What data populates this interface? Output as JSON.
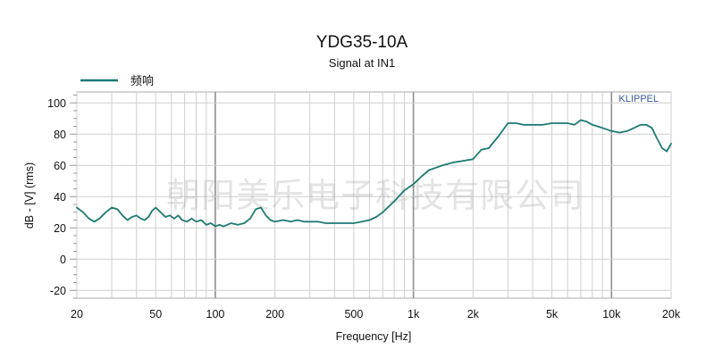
{
  "chart_data": {
    "type": "line",
    "title": "YDG35-10A",
    "subtitle": "Signal at IN1",
    "xlabel": "Frequency [Hz]",
    "ylabel": "dB - [V]  (rms)",
    "xscale": "log",
    "xlim": [
      20,
      20000
    ],
    "ylim": [
      -25,
      107
    ],
    "x_ticks": [
      {
        "value": 20,
        "label": "20"
      },
      {
        "value": 50,
        "label": "50"
      },
      {
        "value": 100,
        "label": "100"
      },
      {
        "value": 200,
        "label": "200"
      },
      {
        "value": 500,
        "label": "500"
      },
      {
        "value": 1000,
        "label": "1k"
      },
      {
        "value": 2000,
        "label": "2k"
      },
      {
        "value": 5000,
        "label": "5k"
      },
      {
        "value": 10000,
        "label": "10k"
      },
      {
        "value": 20000,
        "label": "20k"
      }
    ],
    "y_ticks": [
      -20,
      0,
      20,
      40,
      60,
      80,
      100
    ],
    "grid": true,
    "legend_position": "top-left",
    "brand_label": "KLIPPEL",
    "watermark": "朝阳美乐电子科技有限公司",
    "series": [
      {
        "name": "频响",
        "color": "#1d7a72",
        "x": [
          20,
          21.5,
          23,
          24.5,
          26,
          28,
          30,
          32,
          34,
          36,
          38,
          40,
          42,
          44,
          46,
          48,
          50,
          53,
          56,
          59,
          62,
          65,
          68,
          72,
          76,
          80,
          85,
          90,
          95,
          100,
          105,
          110,
          115,
          120,
          130,
          140,
          150,
          160,
          170,
          180,
          190,
          200,
          220,
          240,
          260,
          280,
          300,
          330,
          360,
          400,
          450,
          500,
          550,
          600,
          650,
          700,
          800,
          900,
          1000,
          1100,
          1200,
          1400,
          1600,
          1800,
          2000,
          2200,
          2400,
          2700,
          3000,
          3300,
          3600,
          4000,
          4500,
          5000,
          5500,
          6000,
          6500,
          7000,
          7500,
          8000,
          8500,
          9000,
          10000,
          11000,
          12000,
          13000,
          14000,
          15000,
          16000,
          17000,
          18000,
          19000,
          20000
        ],
        "y": [
          33,
          30,
          26,
          24,
          26,
          30,
          33,
          32,
          28,
          25,
          27,
          28,
          26,
          25,
          27,
          31,
          33,
          30,
          27,
          28,
          26,
          28,
          25,
          24,
          26,
          24,
          25,
          22,
          23,
          21,
          22,
          21,
          22,
          23,
          22,
          23,
          26,
          32,
          33,
          28,
          25,
          24,
          25,
          24,
          25,
          24,
          24,
          24,
          23,
          23,
          23,
          23,
          24,
          25,
          27,
          30,
          37,
          44,
          48,
          53,
          57,
          60,
          62,
          63,
          64,
          70,
          71,
          79,
          87,
          87,
          86,
          86,
          86,
          87,
          87,
          87,
          86,
          89,
          88,
          86,
          85,
          84,
          82,
          81,
          82,
          84,
          86,
          86,
          84,
          77,
          71,
          69,
          74
        ]
      }
    ]
  }
}
